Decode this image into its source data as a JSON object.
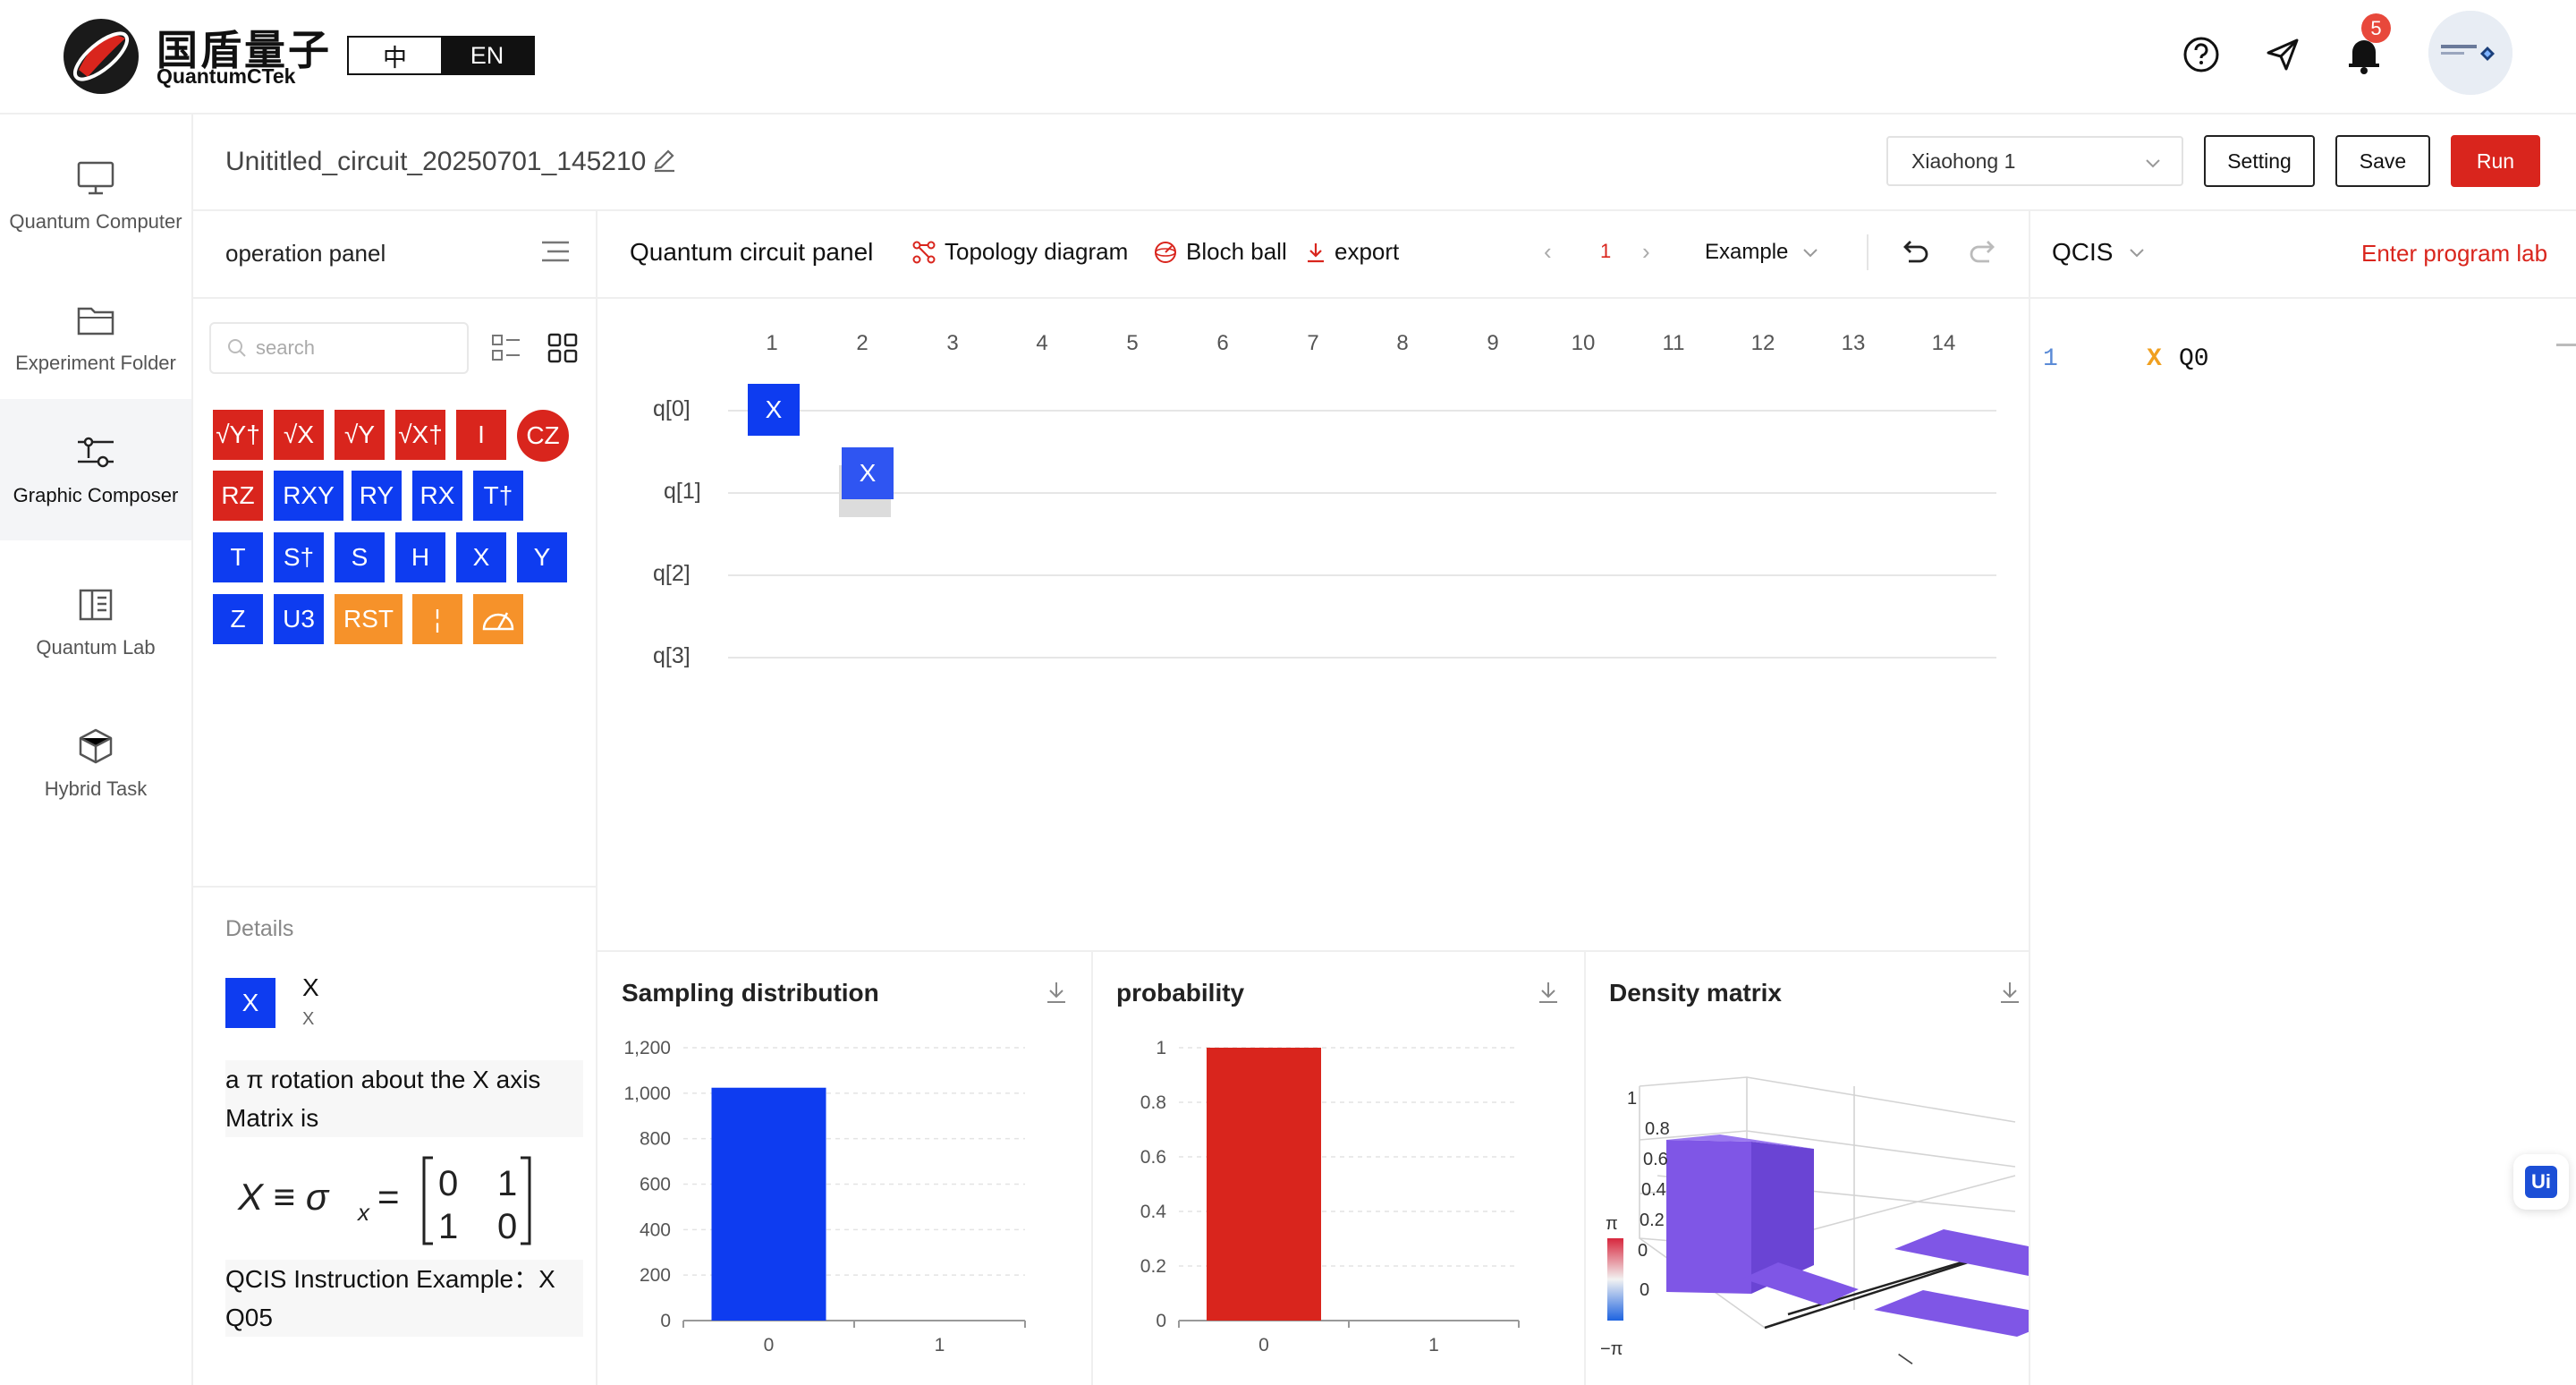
{
  "header": {
    "brand_cn": "国盾量子",
    "brand_en": "QuantumCTek",
    "lang_zh": "中",
    "lang_en": "EN",
    "notification_count": "5",
    "icons": [
      "help-icon",
      "send-icon",
      "bell-icon",
      "avatar"
    ]
  },
  "nav": {
    "items": [
      {
        "label": "Quantum Computer",
        "icon": "monitor-icon"
      },
      {
        "label": "Experiment Folder",
        "icon": "folder-icon"
      },
      {
        "label": "Graphic Composer",
        "icon": "composer-icon"
      },
      {
        "label": "Quantum Lab",
        "icon": "book-icon"
      },
      {
        "label": "Hybrid Task",
        "icon": "cube-icon"
      }
    ],
    "active": "Graphic Composer"
  },
  "titlebar": {
    "circuit_name": "Unititled_circuit_20250701_145210",
    "device": "Xiaohong 1",
    "setting": "Setting",
    "save": "Save",
    "run": "Run"
  },
  "operation_panel": {
    "title": "operation panel",
    "search_placeholder": "search",
    "gates": [
      "√Y†",
      "√X",
      "√Y",
      "√X†",
      "I",
      "CZ",
      "RZ",
      "RXY",
      "RY",
      "RX",
      "T†",
      "T",
      "S†",
      "S",
      "H",
      "X",
      "Y",
      "Z",
      "U3",
      "RST",
      "¦",
      "measure"
    ]
  },
  "details": {
    "label": "Details",
    "gate": "X",
    "name": "X",
    "sub": "X",
    "description": "a π rotation about the X axis",
    "matrix_label": "Matrix is",
    "example": "QCIS Instruction Example：X Q05"
  },
  "circuit_panel": {
    "title": "Quantum circuit panel",
    "topology": "Topology diagram",
    "bloch": "Bloch ball",
    "export": "export",
    "page_prev": "‹",
    "page": "1",
    "page_next": "›",
    "example": "Example",
    "columns": [
      "1",
      "2",
      "3",
      "4",
      "5",
      "6",
      "7",
      "8",
      "9",
      "10",
      "11",
      "12",
      "13",
      "14"
    ],
    "qubits": [
      "q[0]",
      "q[1]",
      "q[2]",
      "q[3]"
    ],
    "placed_gates": [
      {
        "label": "X",
        "qubit": "q[0]",
        "column": 1
      },
      {
        "label": "X",
        "qubit": "q[1]",
        "column": 2
      }
    ]
  },
  "charts": {
    "sampling_title": "Sampling distribution",
    "probability_title": "probability",
    "density_title": "Density matrix",
    "colorbar_top": "π",
    "colorbar_bottom": "−π"
  },
  "chart_data": [
    {
      "type": "bar",
      "title": "Sampling distribution",
      "categories": [
        "0",
        "1"
      ],
      "values": [
        1024,
        0
      ],
      "ylim": [
        0,
        1200
      ],
      "yticks": [
        "0",
        "200",
        "400",
        "600",
        "800",
        "1,000",
        "1,200"
      ],
      "color": "#0e3cf0",
      "grid": true
    },
    {
      "type": "bar",
      "title": "probability",
      "categories": [
        "0",
        "1"
      ],
      "values": [
        1,
        0
      ],
      "ylim": [
        0,
        1
      ],
      "yticks": [
        "0",
        "0.2",
        "0.4",
        "0.6",
        "0.8",
        "1"
      ],
      "color": "#d9251d",
      "grid": true
    },
    {
      "type": "bar3d",
      "title": "Density matrix",
      "zticks": [
        "0",
        "0.2",
        "0.4",
        "0.6",
        "0.8",
        "1"
      ],
      "x_tick": "0",
      "values": [
        [
          1,
          0
        ],
        [
          0,
          0
        ]
      ],
      "color": "#7f56e6"
    }
  ],
  "qcis": {
    "title": "QCIS",
    "link": "Enter program lab",
    "line_number": "1",
    "keyword": "X",
    "argument": "Q0"
  },
  "colors": {
    "accent_red": "#d9251d",
    "gate_blue": "#0e3cf0",
    "gate_orange": "#f6922a",
    "density_purple": "#7f56e6"
  }
}
